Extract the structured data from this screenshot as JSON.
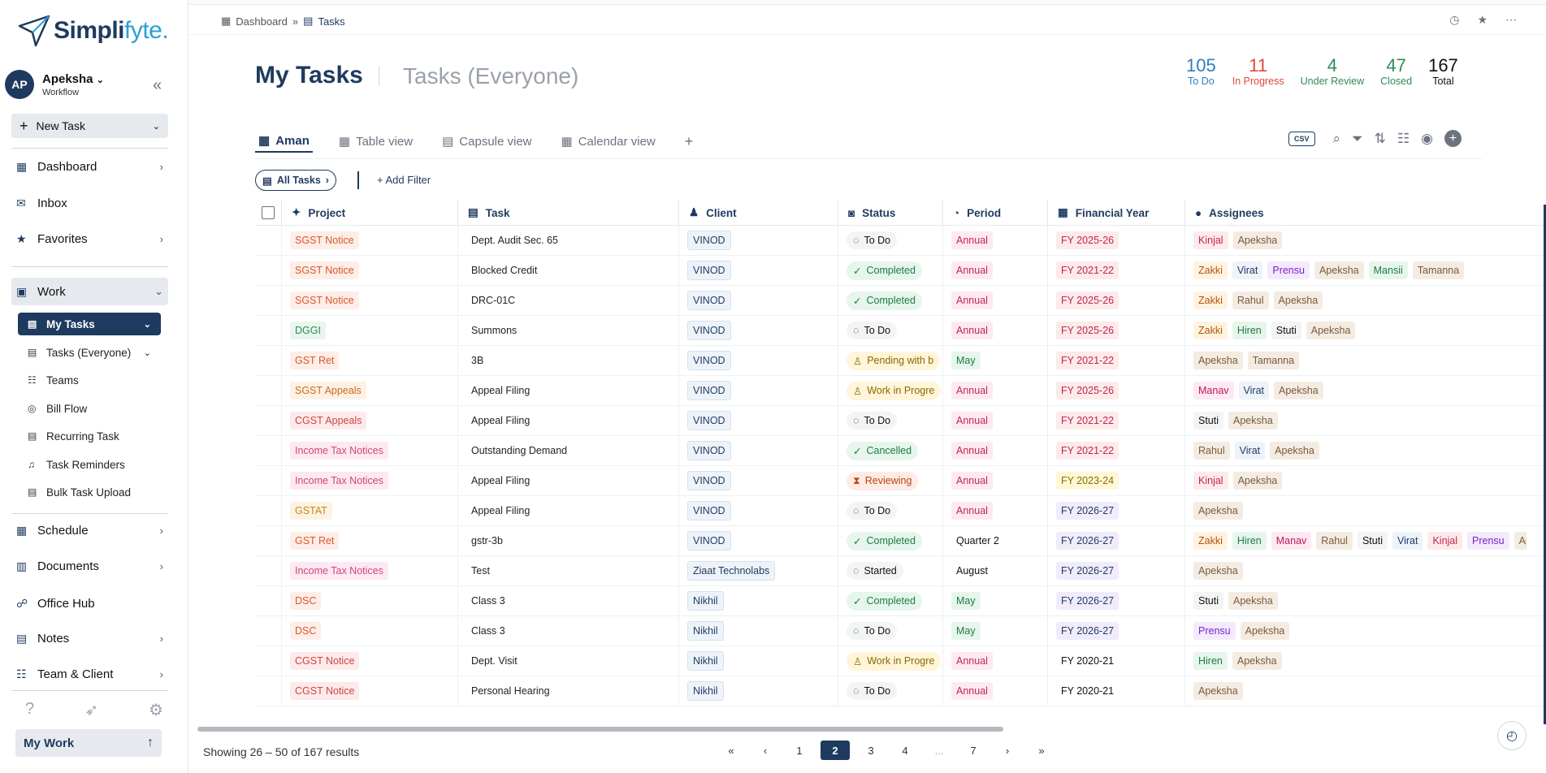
{
  "app": {
    "logo_main": "Simpli",
    "logo_accent": "fyte."
  },
  "user": {
    "initials": "AP",
    "name": "Apeksha",
    "role": "Workflow"
  },
  "sidebar": {
    "new_task": "New Task",
    "items": [
      {
        "label": "Dashboard",
        "icon": "dashboard-icon"
      },
      {
        "label": "Inbox",
        "icon": "inbox-icon"
      },
      {
        "label": "Favorites",
        "icon": "star-icon"
      },
      {
        "label": "Work",
        "icon": "briefcase-icon"
      },
      {
        "label": "Schedule",
        "icon": "calendar-icon"
      },
      {
        "label": "Documents",
        "icon": "document-icon"
      },
      {
        "label": "Office Hub",
        "icon": "office-icon"
      },
      {
        "label": "Notes",
        "icon": "notes-icon"
      },
      {
        "label": "Team & Client",
        "icon": "team-icon"
      }
    ],
    "work_sub": [
      {
        "label": "My Tasks"
      },
      {
        "label": "Tasks (Everyone)"
      },
      {
        "label": "Teams"
      },
      {
        "label": "Bill Flow"
      },
      {
        "label": "Recurring Task"
      },
      {
        "label": "Task Reminders"
      },
      {
        "label": "Bulk Task Upload"
      }
    ],
    "my_work": "My Work"
  },
  "breadcrumb": {
    "parent": "Dashboard",
    "sep": "»",
    "current": "Tasks"
  },
  "header": {
    "title": "My Tasks",
    "alt_title": "Tasks (Everyone)"
  },
  "stats": [
    {
      "value": "105",
      "label": "To Do",
      "color": "#2f7dbf"
    },
    {
      "value": "11",
      "label": "In Progress",
      "color": "#e0463b"
    },
    {
      "value": "4",
      "label": "Under Review",
      "color": "#2e8b57"
    },
    {
      "value": "47",
      "label": "Closed",
      "color": "#2e8b57"
    },
    {
      "value": "167",
      "label": "Total",
      "color": "#111111"
    }
  ],
  "tabs": [
    {
      "label": "Aman"
    },
    {
      "label": "Table view"
    },
    {
      "label": "Capsule view"
    },
    {
      "label": "Calendar view"
    }
  ],
  "toolbar": {
    "csv": "CSV",
    "all_tasks": "All Tasks",
    "add_filter": "+ Add Filter"
  },
  "columns": [
    "Project",
    "Task",
    "Client",
    "Status",
    "Period",
    "Financial Year",
    "Assignees"
  ],
  "rows": [
    {
      "project": "SGST Notice",
      "task": "Dept. Audit Sec. 65",
      "client": "VINOD",
      "status": "To Do",
      "period": "Annual",
      "fy": "FY 2025-26",
      "assignees": [
        "Kinjal",
        "Apeksha"
      ]
    },
    {
      "project": "SGST Notice",
      "task": "Blocked Credit",
      "client": "VINOD",
      "status": "Completed",
      "period": "Annual",
      "fy": "FY 2021-22",
      "assignees": [
        "Zakki",
        "Virat",
        "Prensu",
        "Apeksha",
        "Mansii",
        "Tamanna"
      ]
    },
    {
      "project": "SGST Notice",
      "task": "DRC-01C",
      "client": "VINOD",
      "status": "Completed",
      "period": "Annual",
      "fy": "FY 2025-26",
      "assignees": [
        "Zakki",
        "Rahul",
        "Apeksha"
      ]
    },
    {
      "project": "DGGI",
      "task": "Summons",
      "client": "VINOD",
      "status": "To Do",
      "period": "Annual",
      "fy": "FY 2025-26",
      "assignees": [
        "Zakki",
        "Hiren",
        "Stuti",
        "Apeksha"
      ]
    },
    {
      "project": "GST Ret",
      "task": "3B",
      "client": "VINOD",
      "status": "Pending with b",
      "period": "May",
      "fy": "FY 2021-22",
      "assignees": [
        "Apeksha",
        "Tamanna"
      ]
    },
    {
      "project": "SGST Appeals",
      "task": "Appeal Filing",
      "client": "VINOD",
      "status": "Work in Progre",
      "period": "Annual",
      "fy": "FY 2025-26",
      "assignees": [
        "Manav",
        "Virat",
        "Apeksha"
      ]
    },
    {
      "project": "CGST Appeals",
      "task": "Appeal Filing",
      "client": "VINOD",
      "status": "To Do",
      "period": "Annual",
      "fy": "FY 2021-22",
      "assignees": [
        "Stuti",
        "Apeksha"
      ]
    },
    {
      "project": "Income Tax Notices",
      "task": "Outstanding Demand",
      "client": "VINOD",
      "status": "Cancelled",
      "period": "Annual",
      "fy": "FY 2021-22",
      "assignees": [
        "Rahul",
        "Virat",
        "Apeksha"
      ]
    },
    {
      "project": "Income Tax Notices",
      "task": "Appeal Filing",
      "client": "VINOD",
      "status": "Reviewing",
      "period": "Annual",
      "fy": "FY 2023-24",
      "assignees": [
        "Kinjal",
        "Apeksha"
      ]
    },
    {
      "project": "GSTAT",
      "task": "Appeal Filing",
      "client": "VINOD",
      "status": "To Do",
      "period": "Annual",
      "fy": "FY 2026-27",
      "assignees": [
        "Apeksha"
      ]
    },
    {
      "project": "GST Ret",
      "task": "gstr-3b",
      "client": "VINOD",
      "status": "Completed",
      "period": "Quarter 2",
      "fy": "FY 2026-27",
      "assignees": [
        "Zakki",
        "Hiren",
        "Manav",
        "Rahul",
        "Stuti",
        "Virat",
        "Kinjal",
        "Prensu",
        "Ape"
      ]
    },
    {
      "project": "Income Tax Notices",
      "task": "Test",
      "client": "Ziaat Technolabs",
      "status": "Started",
      "period": "August",
      "fy": "FY 2026-27",
      "assignees": [
        "Apeksha"
      ]
    },
    {
      "project": "DSC",
      "task": "Class 3",
      "client": "Nikhil",
      "status": "Completed",
      "period": "May",
      "fy": "FY 2026-27",
      "assignees": [
        "Stuti",
        "Apeksha"
      ]
    },
    {
      "project": "DSC",
      "task": "Class 3",
      "client": "Nikhil",
      "status": "To Do",
      "period": "May",
      "fy": "FY 2026-27",
      "assignees": [
        "Prensu",
        "Apeksha"
      ]
    },
    {
      "project": "CGST Notice",
      "task": "Dept. Visit",
      "client": "Nikhil",
      "status": "Work in Progre",
      "period": "Annual",
      "fy": "FY 2020-21",
      "assignees": [
        "Hiren",
        "Apeksha"
      ]
    },
    {
      "project": "CGST Notice",
      "task": "Personal Hearing",
      "client": "Nikhil",
      "status": "To Do",
      "period": "Annual",
      "fy": "FY 2020-21",
      "assignees": [
        "Apeksha"
      ]
    }
  ],
  "footer": {
    "showing": "Showing 26 – 50 of 167 results",
    "pages": [
      "«",
      "‹",
      "1",
      "2",
      "3",
      "4",
      "...",
      "7",
      "›",
      "»"
    ],
    "active_page": "2"
  }
}
